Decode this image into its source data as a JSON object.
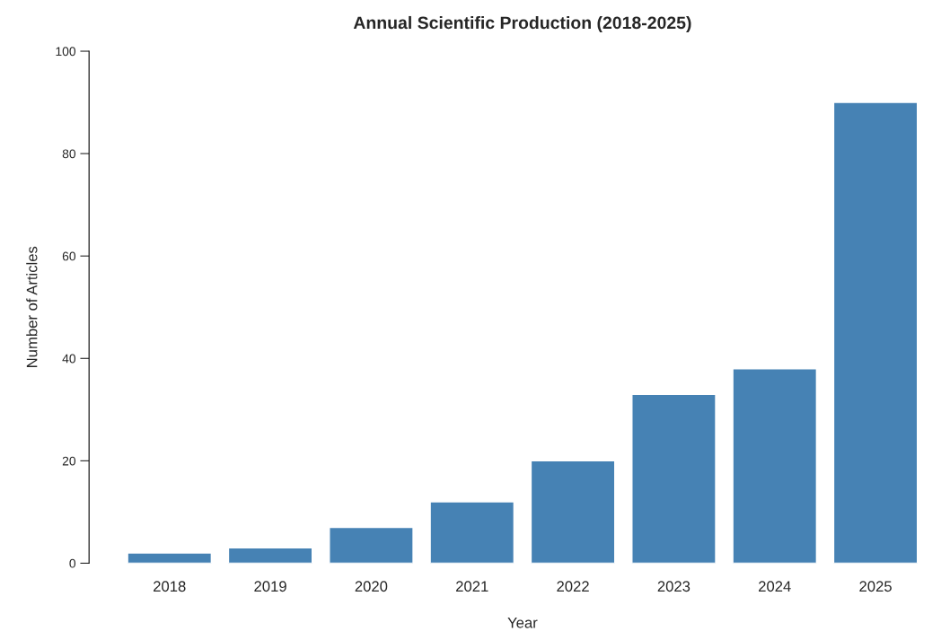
{
  "chart_data": {
    "type": "bar",
    "title": "Annual Scientific Production (2018-2025)",
    "xlabel": "Year",
    "ylabel": "Number of Articles",
    "categories": [
      "2018",
      "2019",
      "2020",
      "2021",
      "2022",
      "2023",
      "2024",
      "2025"
    ],
    "values": [
      2,
      3,
      7,
      12,
      20,
      33,
      38,
      90
    ],
    "color": "#4682b4",
    "ylim": [
      0,
      100
    ],
    "yticks": [
      0,
      20,
      40,
      60,
      80,
      100
    ],
    "grid": false
  }
}
